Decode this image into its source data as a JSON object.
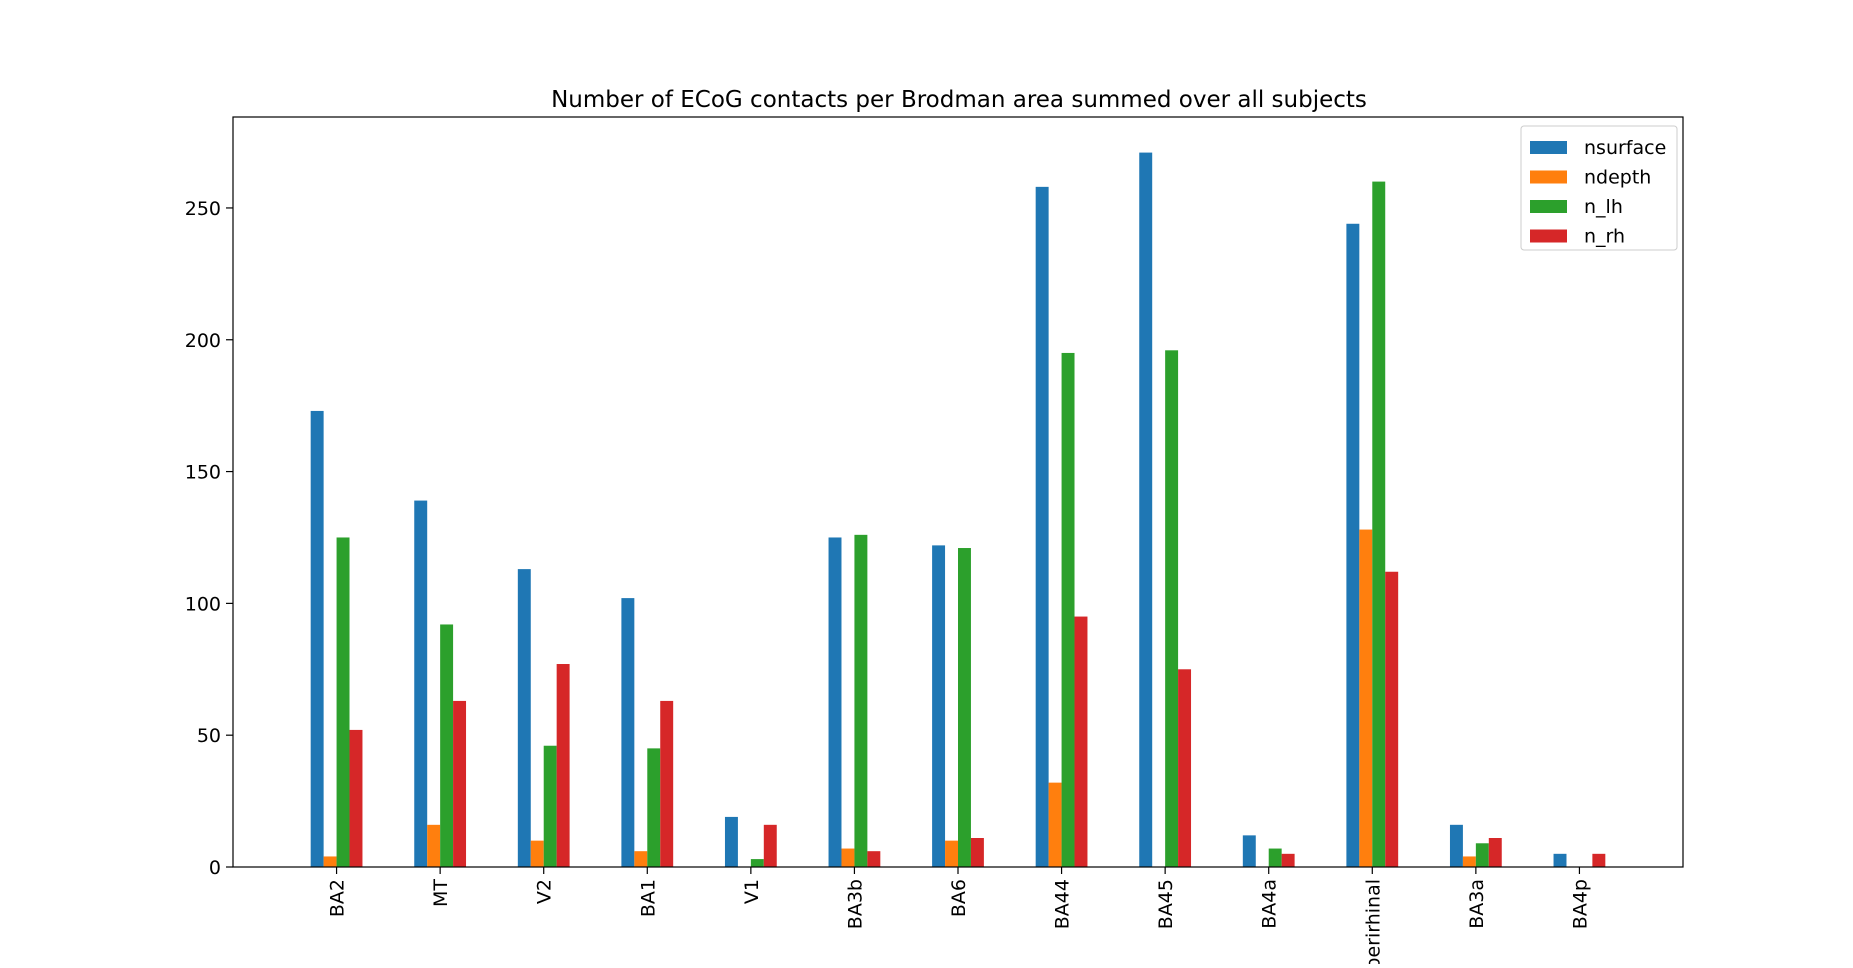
{
  "chart_data": {
    "type": "bar",
    "title": "Number of ECoG contacts per Brodman area summed over all subjects",
    "xlabel": "",
    "ylabel": "",
    "categories": [
      "BA2",
      "MT",
      "V2",
      "BA1",
      "V1",
      "BA3b",
      "BA6",
      "BA44",
      "BA45",
      "BA4a",
      "perirhinal",
      "BA3a",
      "BA4p"
    ],
    "series": [
      {
        "name": "nsurface",
        "color": "#1f77b4",
        "values": [
          173,
          139,
          113,
          102,
          19,
          125,
          122,
          258,
          271,
          12,
          244,
          16,
          5
        ]
      },
      {
        "name": "ndepth",
        "color": "#ff7f0e",
        "values": [
          4,
          16,
          10,
          6,
          0,
          7,
          10,
          32,
          0,
          0,
          128,
          4,
          0
        ]
      },
      {
        "name": "n_lh",
        "color": "#2ca02c",
        "values": [
          125,
          92,
          46,
          45,
          3,
          126,
          121,
          195,
          196,
          7,
          260,
          9,
          0
        ]
      },
      {
        "name": "n_rh",
        "color": "#d62728",
        "values": [
          52,
          63,
          77,
          63,
          16,
          6,
          11,
          95,
          75,
          5,
          112,
          11,
          5
        ]
      }
    ],
    "ylim": [
      0,
      284.5
    ],
    "yticks": [
      0,
      50,
      100,
      150,
      200,
      250
    ],
    "ytick_labels": [
      "0",
      "50",
      "100",
      "150",
      "200",
      "250"
    ],
    "grid": false,
    "legend_position": "top-right"
  }
}
